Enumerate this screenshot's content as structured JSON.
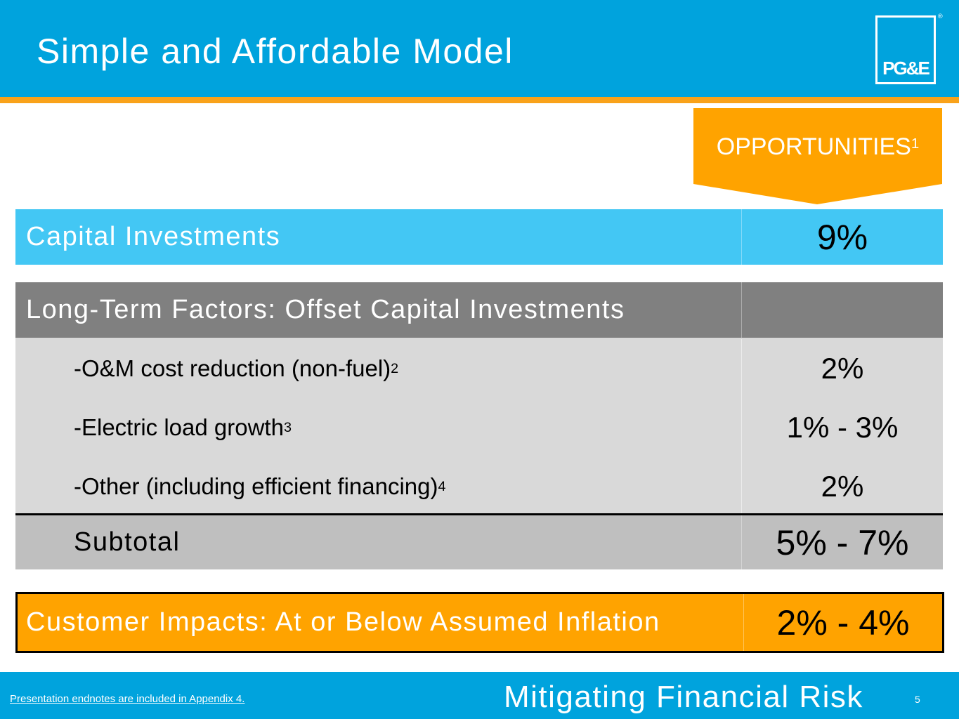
{
  "header": {
    "title": "Simple and Affordable Model",
    "logo": "PG&E",
    "registered": "®"
  },
  "table": {
    "column_header": {
      "text": "OPPORTUNITIES",
      "note": "1"
    },
    "capital": {
      "label": "Capital Investments",
      "value": "9%"
    },
    "long_term": {
      "label": "Long-Term Factors: Offset Capital Investments",
      "items": [
        {
          "label": "-O&M cost reduction (non-fuel)",
          "note": "2",
          "value": "2%"
        },
        {
          "label": "-Electric load growth",
          "note": "3",
          "value": "1% - 3%"
        },
        {
          "label": "-Other (including efficient financing)",
          "note": "4",
          "value": "2%"
        }
      ]
    },
    "subtotal": {
      "label": "Subtotal",
      "value": "5% - 7%"
    },
    "customer": {
      "label": "Customer Impacts: At or Below Assumed Inflation",
      "value": "2% - 4%"
    }
  },
  "footer": {
    "endnote": "Presentation endnotes are included in Appendix 4.",
    "section": "Mitigating Financial Risk",
    "page": "5"
  }
}
